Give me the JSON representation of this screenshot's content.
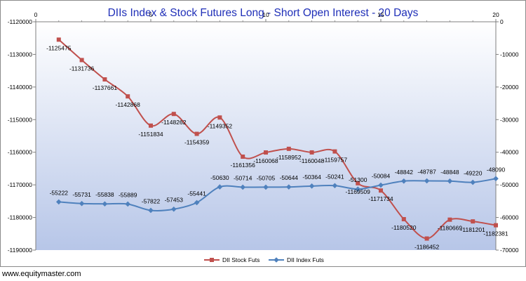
{
  "footer": "www.equitymaster.com",
  "colors": {
    "stock": "#c0504d",
    "index": "#4f81bd",
    "bg_top": "#ffffff",
    "bg_bottom": "#b7c6e8",
    "title": "#1f2fb8"
  },
  "chart_data": {
    "type": "line",
    "title": "DIIs Index & Stock Futures Long - Short Open Interest - 20 Days",
    "x": [
      1,
      2,
      3,
      4,
      5,
      6,
      7,
      8,
      9,
      10,
      11,
      12,
      13,
      14,
      15,
      16,
      17,
      18,
      19,
      20
    ],
    "xlim": [
      0,
      20
    ],
    "x_ticks": [
      "0",
      "5",
      "10",
      "15",
      "20"
    ],
    "y_left_lim": [
      -1190000,
      -1120000
    ],
    "y_left_ticks": [
      "-1120000",
      "-1130000",
      "-1140000",
      "-1150000",
      "-1160000",
      "-1170000",
      "-1180000",
      "-1190000"
    ],
    "y_right_lim": [
      -70000,
      0
    ],
    "y_right_ticks": [
      "0",
      "-10000",
      "-20000",
      "-30000",
      "-40000",
      "-50000",
      "-60000",
      "-70000"
    ],
    "grid": false,
    "legend_position": "bottom",
    "series": [
      {
        "name": "DII Stock Futs",
        "axis": "left",
        "values": [
          -1125475,
          -1131736,
          -1137661,
          -1142868,
          -1151834,
          -1148262,
          -1154359,
          -1149352,
          -1161356,
          -1160068,
          -1158952,
          -1160048,
          -1159757,
          -1169509,
          -1171734,
          -1180520,
          -1186452,
          -1180669,
          -1181201,
          -1182381
        ],
        "labels": [
          "-1125475",
          "-1131736",
          "-1137661",
          "-1142868",
          "-1151834",
          "-1148262",
          "-1154359",
          "-1149352",
          "-1161356",
          "-1160068",
          "-1158952",
          "-1160048",
          "-1159757",
          "-1169509",
          "-1171734",
          "-1180520",
          "-1186452",
          "-1180669",
          "-1181201",
          "-1182381"
        ]
      },
      {
        "name": "DII Index Futs",
        "axis": "right",
        "values": [
          -55222,
          -55731,
          -55838,
          -55889,
          -57822,
          -57453,
          -55441,
          -50630,
          -50714,
          -50705,
          -50644,
          -50364,
          -50241,
          -51300,
          -50084,
          -48842,
          -48787,
          -48848,
          -49220,
          -48090
        ],
        "labels": [
          "-55222",
          "-55731",
          "-55838",
          "-55889",
          "-57822",
          "-57453",
          "-55441",
          "-50630",
          "-50714",
          "-50705",
          "-50644",
          "-50364",
          "-50241",
          "-51300",
          "-50084",
          "-48842",
          "-48787",
          "-48848",
          "-49220",
          "-48090"
        ]
      }
    ]
  }
}
